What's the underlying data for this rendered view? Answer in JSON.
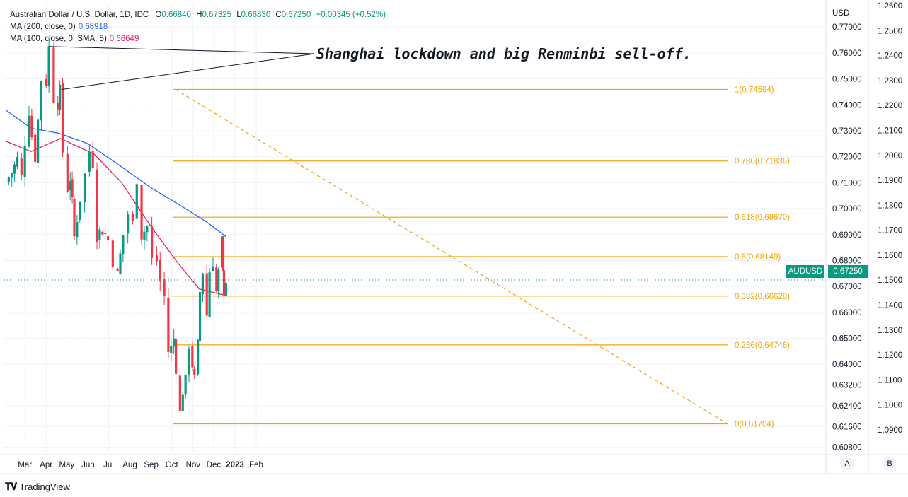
{
  "legend": {
    "symbol": "Australian Dollar / U.S. Dollar, 1D, IDC",
    "o_label": "O",
    "o_value": "0.66840",
    "h_label": "H",
    "h_value": "0.67325",
    "l_label": "L",
    "l_value": "0.66830",
    "c_label": "C",
    "c_value": "0.67250",
    "change": "+0.00345 (+0.52%)",
    "ma200_label": "MA (200, close, 0)",
    "ma200_value": "0.68918",
    "ma100_label": "MA (100, close, 0, SMA, 5)",
    "ma100_value": "0.66649"
  },
  "annotation": "Shanghai lockdown and big Renminbi sell-off.",
  "ticker_badge": "AUDUSD",
  "price_badge": "0.67250",
  "currency_label": "USD",
  "scale_buttons": {
    "auto": "A",
    "alt": "B"
  },
  "footer": {
    "brand": "TradingView",
    "icon": "tradingview-logo-icon"
  },
  "colors": {
    "up": "#089981",
    "down": "#f23645",
    "ma200": "#2962ff",
    "ma100": "#e91e63",
    "fib": "#f0a30a",
    "grid": "#f0f3fa",
    "text": "#131722"
  },
  "chart_data": {
    "type": "candlestick",
    "title": "Australian Dollar / U.S. Dollar, 1D, IDC",
    "x_tick_labels": [
      "Mar",
      "Apr",
      "May",
      "Jun",
      "Jul",
      "Aug",
      "Sep",
      "Oct",
      "Nov",
      "Dec",
      "2023",
      "Feb"
    ],
    "y_left_ticks": [
      "0.60800",
      "0.61600",
      "0.62400",
      "0.63200",
      "0.64000",
      "0.65000",
      "0.66000",
      "0.67000",
      "0.68000",
      "0.69000",
      "0.70000",
      "0.71000",
      "0.72000",
      "0.73000",
      "0.74000",
      "0.75000",
      "0.76000",
      "0.77000"
    ],
    "y_right_ticks": [
      "1.0900",
      "1.1000",
      "1.1100",
      "1.1200",
      "1.1300",
      "1.1400",
      "1.1500",
      "1.1600",
      "1.1700",
      "1.1800",
      "1.1900",
      "1.2000",
      "1.2100",
      "1.2200",
      "1.2300",
      "1.2400",
      "1.2500",
      "1.2600"
    ],
    "ylim": [
      0.606,
      0.7755
    ],
    "fib_levels": [
      {
        "ratio": "1",
        "label": "1(0.74594)",
        "price": 0.74594
      },
      {
        "ratio": "0.786",
        "label": "0.786(0.71836)",
        "price": 0.71836
      },
      {
        "ratio": "0.618",
        "label": "0.618(0.69670)",
        "price": 0.6967
      },
      {
        "ratio": "0.5",
        "label": "0.5(0.68149)",
        "price": 0.68149
      },
      {
        "ratio": "0.382",
        "label": "0.382(0.66628)",
        "price": 0.66628
      },
      {
        "ratio": "0.236",
        "label": "0.236(0.64746)",
        "price": 0.64746
      },
      {
        "ratio": "0",
        "label": "0(0.61704)",
        "price": 0.61704
      }
    ],
    "close_path": [
      {
        "date": "2022-02-01",
        "close": 0.71
      },
      {
        "date": "2022-02-10",
        "close": 0.714
      },
      {
        "date": "2022-02-18",
        "close": 0.719
      },
      {
        "date": "2022-02-24",
        "close": 0.712
      },
      {
        "date": "2022-03-01",
        "close": 0.726
      },
      {
        "date": "2022-03-07",
        "close": 0.738
      },
      {
        "date": "2022-03-11",
        "close": 0.728
      },
      {
        "date": "2022-03-16",
        "close": 0.72
      },
      {
        "date": "2022-03-20",
        "close": 0.734
      },
      {
        "date": "2022-03-25",
        "close": 0.75
      },
      {
        "date": "2022-04-01",
        "close": 0.749
      },
      {
        "date": "2022-04-05",
        "close": 0.762
      },
      {
        "date": "2022-04-12",
        "close": 0.743
      },
      {
        "date": "2022-04-18",
        "close": 0.741
      },
      {
        "date": "2022-04-21",
        "close": 0.745
      },
      {
        "date": "2022-04-25",
        "close": 0.722
      },
      {
        "date": "2022-05-02",
        "close": 0.708
      },
      {
        "date": "2022-05-06",
        "close": 0.712
      },
      {
        "date": "2022-05-09",
        "close": 0.702
      },
      {
        "date": "2022-05-12",
        "close": 0.689
      },
      {
        "date": "2022-05-20",
        "close": 0.704
      },
      {
        "date": "2022-05-27",
        "close": 0.713
      },
      {
        "date": "2022-06-03",
        "close": 0.722
      },
      {
        "date": "2022-06-08",
        "close": 0.718
      },
      {
        "date": "2022-06-14",
        "close": 0.69
      },
      {
        "date": "2022-06-22",
        "close": 0.692
      },
      {
        "date": "2022-06-30",
        "close": 0.688
      },
      {
        "date": "2022-07-07",
        "close": 0.68
      },
      {
        "date": "2022-07-14",
        "close": 0.674
      },
      {
        "date": "2022-07-22",
        "close": 0.69
      },
      {
        "date": "2022-07-29",
        "close": 0.698
      },
      {
        "date": "2022-08-05",
        "close": 0.694
      },
      {
        "date": "2022-08-11",
        "close": 0.712
      },
      {
        "date": "2022-08-18",
        "close": 0.69
      },
      {
        "date": "2022-08-26",
        "close": 0.693
      },
      {
        "date": "2022-09-02",
        "close": 0.68
      },
      {
        "date": "2022-09-09",
        "close": 0.68
      },
      {
        "date": "2022-09-14",
        "close": 0.672
      },
      {
        "date": "2022-09-20",
        "close": 0.666
      },
      {
        "date": "2022-09-26",
        "close": 0.645
      },
      {
        "date": "2022-09-30",
        "close": 0.646
      },
      {
        "date": "2022-10-04",
        "close": 0.65
      },
      {
        "date": "2022-10-07",
        "close": 0.639
      },
      {
        "date": "2022-10-13",
        "close": 0.621
      },
      {
        "date": "2022-10-17",
        "close": 0.63
      },
      {
        "date": "2022-10-21",
        "close": 0.633
      },
      {
        "date": "2022-10-26",
        "close": 0.648
      },
      {
        "date": "2022-10-31",
        "close": 0.64
      },
      {
        "date": "2022-11-03",
        "close": 0.634
      },
      {
        "date": "2022-11-08",
        "close": 0.647
      },
      {
        "date": "2022-11-11",
        "close": 0.668
      },
      {
        "date": "2022-11-15",
        "close": 0.676
      },
      {
        "date": "2022-11-21",
        "close": 0.659
      },
      {
        "date": "2022-11-25",
        "close": 0.676
      },
      {
        "date": "2022-11-30",
        "close": 0.68
      },
      {
        "date": "2022-12-05",
        "close": 0.668
      },
      {
        "date": "2022-12-08",
        "close": 0.675
      },
      {
        "date": "2022-12-13",
        "close": 0.687
      },
      {
        "date": "2022-12-15",
        "close": 0.674
      },
      {
        "date": "2022-12-16",
        "close": 0.669
      },
      {
        "date": "2022-12-19",
        "close": 0.6725
      }
    ],
    "ma200": [
      {
        "date": "2022-02-01",
        "value": 0.738
      },
      {
        "date": "2022-03-10",
        "value": 0.731
      },
      {
        "date": "2022-04-20",
        "value": 0.729
      },
      {
        "date": "2022-06-01",
        "value": 0.725
      },
      {
        "date": "2022-07-15",
        "value": 0.717
      },
      {
        "date": "2022-09-01",
        "value": 0.708
      },
      {
        "date": "2022-10-15",
        "value": 0.701
      },
      {
        "date": "2022-11-20",
        "value": 0.695
      },
      {
        "date": "2022-12-19",
        "value": 0.68918
      }
    ],
    "ma100": [
      {
        "date": "2022-02-01",
        "value": 0.726
      },
      {
        "date": "2022-03-10",
        "value": 0.722
      },
      {
        "date": "2022-04-22",
        "value": 0.727
      },
      {
        "date": "2022-06-10",
        "value": 0.721
      },
      {
        "date": "2022-07-20",
        "value": 0.71
      },
      {
        "date": "2022-09-01",
        "value": 0.693
      },
      {
        "date": "2022-10-10",
        "value": 0.679
      },
      {
        "date": "2022-11-10",
        "value": 0.669
      },
      {
        "date": "2022-12-19",
        "value": 0.66649
      }
    ]
  }
}
